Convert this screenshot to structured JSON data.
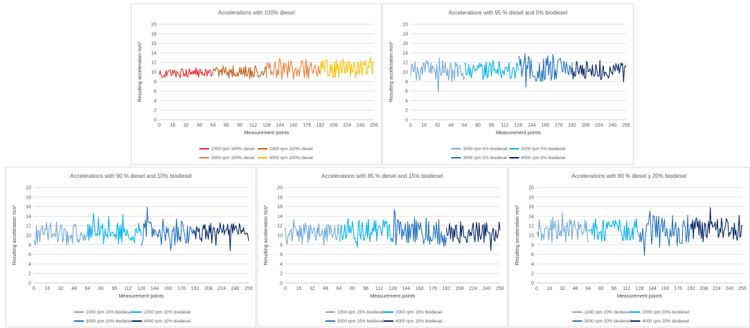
{
  "chart_data": [
    {
      "type": "line",
      "title": "Accelerations with 100% diesel",
      "xlabel": "Measurement points",
      "ylabel": "Resulting acceleration m/s²",
      "ylim": [
        0,
        20
      ],
      "yticks": [
        0,
        2,
        4,
        6,
        8,
        10,
        12,
        14,
        16,
        18,
        20
      ],
      "xlim": [
        0,
        256
      ],
      "xticks": [
        0,
        16,
        32,
        48,
        64,
        80,
        96,
        112,
        128,
        144,
        160,
        176,
        192,
        208,
        224,
        240,
        256
      ],
      "grid": true,
      "legend_position": "bottom",
      "series": [
        {
          "name": "1000 rpm 100% diesel",
          "color": "#e8262a",
          "x_range": [
            0,
            64
          ],
          "mean": 9.8,
          "amp": 1.0,
          "seed": 3
        },
        {
          "name": "2000 rpm 100% diesel",
          "color": "#c55a11",
          "x_range": [
            64,
            128
          ],
          "mean": 10.0,
          "amp": 1.3,
          "seed": 7
        },
        {
          "name": "3000 rpm 100% diesel",
          "color": "#ed7d31",
          "x_range": [
            128,
            192
          ],
          "mean": 10.5,
          "amp": 2.1,
          "seed": 11
        },
        {
          "name": "4000 rpm 100% diesel",
          "color": "#ffc000",
          "x_range": [
            192,
            256
          ],
          "mean": 10.8,
          "amp": 1.9,
          "seed": 13
        }
      ]
    },
    {
      "type": "line",
      "title": "Accelerations with 95 % diesel and 5% biodiesel",
      "xlabel": "Measurement points",
      "ylabel": "Resulting acceleration m/s²",
      "ylim": [
        0,
        20
      ],
      "yticks": [
        0,
        2,
        4,
        6,
        8,
        10,
        12,
        14,
        16,
        18,
        20
      ],
      "xlim": [
        0,
        256
      ],
      "xticks": [
        0,
        16,
        32,
        48,
        64,
        80,
        96,
        112,
        128,
        144,
        160,
        176,
        192,
        208,
        224,
        240,
        256
      ],
      "grid": true,
      "legend_position": "bottom",
      "series": [
        {
          "name": "1000 rpm 5% biodiesel",
          "color": "#6fa8dc",
          "x_range": [
            0,
            64
          ],
          "mean": 10.2,
          "amp": 2.0,
          "seed": 17
        },
        {
          "name": "2000 rpm 5% biodiesel",
          "color": "#00b0f0",
          "x_range": [
            64,
            128
          ],
          "mean": 10.3,
          "amp": 2.0,
          "seed": 19
        },
        {
          "name": "3000 rpm 5% biodiesel",
          "color": "#1f6fbf",
          "x_range": [
            128,
            192
          ],
          "mean": 10.5,
          "amp": 3.0,
          "seed": 23
        },
        {
          "name": "4000 rpm 5% biodiesel",
          "color": "#002060",
          "x_range": [
            192,
            256
          ],
          "mean": 10.4,
          "amp": 1.9,
          "seed": 29
        }
      ]
    },
    {
      "type": "line",
      "title": "Accelerations with 90 % diesel and 10% biodiesel",
      "xlabel": "Measurement points",
      "ylabel": "Resulting acceleration m/s²",
      "ylim": [
        0,
        20
      ],
      "yticks": [
        0,
        2,
        4,
        6,
        8,
        10,
        12,
        14,
        16,
        18,
        20
      ],
      "xlim": [
        0,
        256
      ],
      "xticks": [
        0,
        16,
        32,
        48,
        64,
        80,
        96,
        112,
        128,
        144,
        160,
        176,
        192,
        208,
        224,
        240,
        256
      ],
      "grid": true,
      "legend_position": "bottom",
      "series": [
        {
          "name": "1000 rpm 10% biodiesel",
          "color": "#6fa8dc",
          "x_range": [
            0,
            64
          ],
          "mean": 10.3,
          "amp": 2.2,
          "seed": 31
        },
        {
          "name": "2000 rpm 10% biodiesel",
          "color": "#00b0f0",
          "x_range": [
            64,
            128
          ],
          "mean": 10.6,
          "amp": 2.1,
          "seed": 37
        },
        {
          "name": "3000 rpm 10% biodiesel",
          "color": "#1f6fbf",
          "x_range": [
            128,
            192
          ],
          "mean": 10.6,
          "amp": 3.0,
          "seed": 41
        },
        {
          "name": "4000 rpm 10% biodiesel",
          "color": "#002060",
          "x_range": [
            192,
            256
          ],
          "mean": 10.6,
          "amp": 2.0,
          "seed": 43
        }
      ]
    },
    {
      "type": "line",
      "title": "Accelerations with 85 % diesel and 15% biodiesel",
      "xlabel": "Measurement points",
      "ylabel": "Resulting acceleration m/s²",
      "ylim": [
        0,
        20
      ],
      "yticks": [
        0,
        2,
        4,
        6,
        8,
        10,
        12,
        14,
        16,
        18,
        20
      ],
      "xlim": [
        0,
        256
      ],
      "xticks": [
        0,
        16,
        32,
        48,
        64,
        80,
        96,
        112,
        128,
        144,
        160,
        176,
        192,
        208,
        224,
        240,
        256
      ],
      "grid": true,
      "legend_position": "bottom",
      "series": [
        {
          "name": "1000 rpm 15% biodiesel",
          "color": "#6fa8dc",
          "x_range": [
            0,
            64
          ],
          "mean": 10.6,
          "amp": 2.3,
          "seed": 47
        },
        {
          "name": "2000 rpm 15% biodiesel",
          "color": "#00b0f0",
          "x_range": [
            64,
            128
          ],
          "mean": 10.8,
          "amp": 2.4,
          "seed": 53
        },
        {
          "name": "3000 rpm 15% biodiesel",
          "color": "#1f6fbf",
          "x_range": [
            128,
            192
          ],
          "mean": 10.8,
          "amp": 3.1,
          "seed": 59
        },
        {
          "name": "4000 rpm 15% biodiesel",
          "color": "#002060",
          "x_range": [
            192,
            256
          ],
          "mean": 10.7,
          "amp": 2.2,
          "seed": 61
        }
      ]
    },
    {
      "type": "line",
      "title": "Accelerations with 80 % diesel y 20% biodiesel",
      "xlabel": "Measurement points",
      "ylabel": "Resulting acceleration m/s²",
      "ylim": [
        0,
        20
      ],
      "yticks": [
        0,
        2,
        4,
        6,
        8,
        10,
        12,
        14,
        16,
        18,
        20
      ],
      "xlim": [
        0,
        256
      ],
      "xticks": [
        0,
        16,
        32,
        48,
        64,
        80,
        96,
        112,
        128,
        144,
        160,
        176,
        192,
        208,
        224,
        240,
        256
      ],
      "grid": true,
      "legend_position": "bottom",
      "series": [
        {
          "name": "1000 rpm 20% biodiesel",
          "color": "#6fa8dc",
          "x_range": [
            0,
            64
          ],
          "mean": 10.9,
          "amp": 2.4,
          "seed": 67
        },
        {
          "name": "2000 rpm 20% biodiesel",
          "color": "#00b0f0",
          "x_range": [
            64,
            128
          ],
          "mean": 11.1,
          "amp": 2.6,
          "seed": 71
        },
        {
          "name": "3000 rpm 20% biodiesel",
          "color": "#1f6fbf",
          "x_range": [
            128,
            192
          ],
          "mean": 11.2,
          "amp": 3.2,
          "seed": 73
        },
        {
          "name": "4000 rpm 20% biodiesel",
          "color": "#002060",
          "x_range": [
            192,
            256
          ],
          "mean": 11.0,
          "amp": 2.5,
          "seed": 79
        }
      ]
    }
  ]
}
